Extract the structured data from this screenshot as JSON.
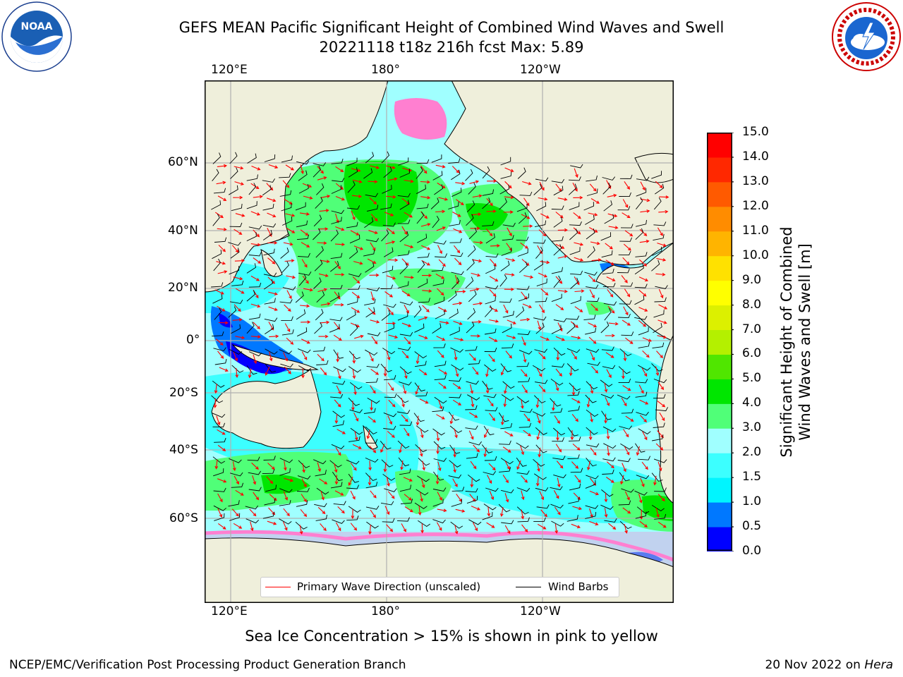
{
  "header": {
    "title_line1": "GEFS MEAN Pacific Significant Height of Combined Wind Waves and Swell",
    "title_line2": "20221118 t18z 216h fcst   Max: 5.89"
  },
  "logos": {
    "left": "noaa-logo",
    "right": "nws-logo"
  },
  "map": {
    "lon_labels": [
      "120°E",
      "180°",
      "120°W"
    ],
    "lat_labels": [
      "60°N",
      "40°N",
      "20°N",
      "0°",
      "20°S",
      "40°S",
      "60°S"
    ],
    "legend": {
      "red_label": "Primary Wave Direction (unscaled)",
      "black_label": "Wind Barbs"
    }
  },
  "colorbar": {
    "title_line1": "Significant Height of Combined",
    "title_line2": "Wind Waves and Swell [m]",
    "ticks": [
      "15.0",
      "14.0",
      "13.0",
      "12.0",
      "11.0",
      "10.0",
      "9.0",
      "8.0",
      "7.0",
      "6.0",
      "5.0",
      "4.0",
      "3.0",
      "2.0",
      "1.5",
      "1.0",
      "0.5",
      "0.0"
    ],
    "colors": [
      "#0000ff",
      "#0078ff",
      "#00f5ff",
      "#3cffff",
      "#a0ffff",
      "#50ff78",
      "#00e600",
      "#50e600",
      "#b4f000",
      "#dcf000",
      "#ffff00",
      "#ffe100",
      "#ffb400",
      "#ff8c00",
      "#ff5a00",
      "#ff2800",
      "#ff0000"
    ]
  },
  "footer": {
    "sea_ice_note": "Sea Ice Concentration > 15% is shown in pink to yellow",
    "credit": "NCEP/EMC/Verification Post Processing Product Generation Branch",
    "date": "20 Nov 2022 on",
    "machine": "Hera"
  }
}
